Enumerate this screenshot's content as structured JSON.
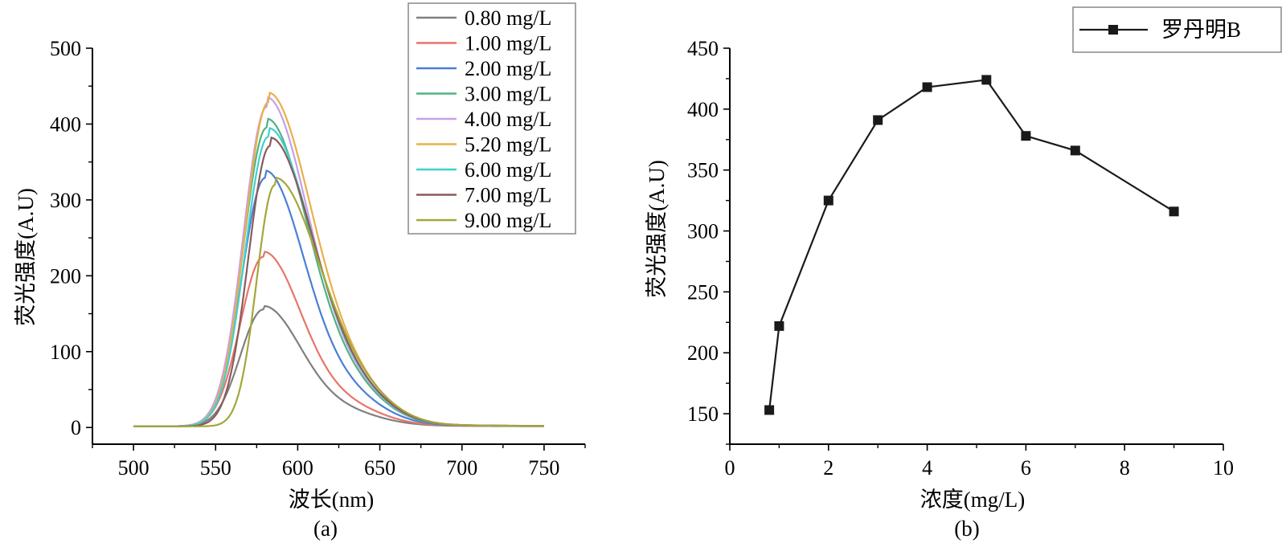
{
  "colors": {
    "axis": "#000000",
    "series_b": "#1a1a1a",
    "legend_border": "#888888"
  },
  "chart_data": [
    {
      "type": "line",
      "caption": "(a)",
      "xlabel": "波长(nm)",
      "ylabel": "荧光强度(A.U)",
      "xlim": [
        475,
        775
      ],
      "ylim": [
        -22,
        500
      ],
      "xticks": [
        500,
        550,
        600,
        650,
        700,
        750
      ],
      "yticks": [
        0,
        100,
        200,
        300,
        400,
        500
      ],
      "legend_position": "top-right",
      "series": [
        {
          "name": "0.80 mg/L",
          "color": "#7f7f7f",
          "peak": 153,
          "center": 579,
          "sigL": 14,
          "sigR": 23
        },
        {
          "name": "1.00 mg/L",
          "color": "#e8746a",
          "peak": 222,
          "center": 579,
          "sigL": 14,
          "sigR": 23
        },
        {
          "name": "2.00 mg/L",
          "color": "#4a7fd4",
          "peak": 325,
          "center": 580,
          "sigL": 14,
          "sigR": 24
        },
        {
          "name": "3.00 mg/L",
          "color": "#4fb382",
          "peak": 391,
          "center": 581,
          "sigL": 14,
          "sigR": 25
        },
        {
          "name": "4.00 mg/L",
          "color": "#c7a0e8",
          "peak": 418,
          "center": 581,
          "sigL": 14,
          "sigR": 25
        },
        {
          "name": "5.20 mg/L",
          "color": "#e8b04a",
          "peak": 424,
          "center": 582,
          "sigL": 14,
          "sigR": 26
        },
        {
          "name": "6.00 mg/L",
          "color": "#3fd1cf",
          "peak": 379,
          "center": 582,
          "sigL": 14,
          "sigR": 26
        },
        {
          "name": "7.00 mg/L",
          "color": "#8c5a5a",
          "peak": 367,
          "center": 583,
          "sigL": 13,
          "sigR": 26
        },
        {
          "name": "9.00 mg/L",
          "color": "#a3a73a",
          "peak": 316,
          "center": 586,
          "sigL": 11,
          "sigR": 27
        }
      ]
    },
    {
      "type": "line",
      "caption": "(b)",
      "xlabel": "浓度(mg/L)",
      "ylabel": "荧光强度(A.U)",
      "xlim": [
        0,
        10
      ],
      "ylim": [
        125,
        450
      ],
      "xticks": [
        0,
        2,
        4,
        6,
        8,
        10
      ],
      "yticks": [
        150,
        200,
        250,
        300,
        350,
        400,
        450
      ],
      "legend_position": "top-right",
      "series": [
        {
          "name": "罗丹明B",
          "x": [
            0.8,
            1.0,
            2.0,
            3.0,
            4.0,
            5.2,
            6.0,
            7.0,
            9.0
          ],
          "y": [
            153,
            222,
            325,
            391,
            418,
            424,
            378,
            366,
            316
          ]
        }
      ]
    }
  ]
}
